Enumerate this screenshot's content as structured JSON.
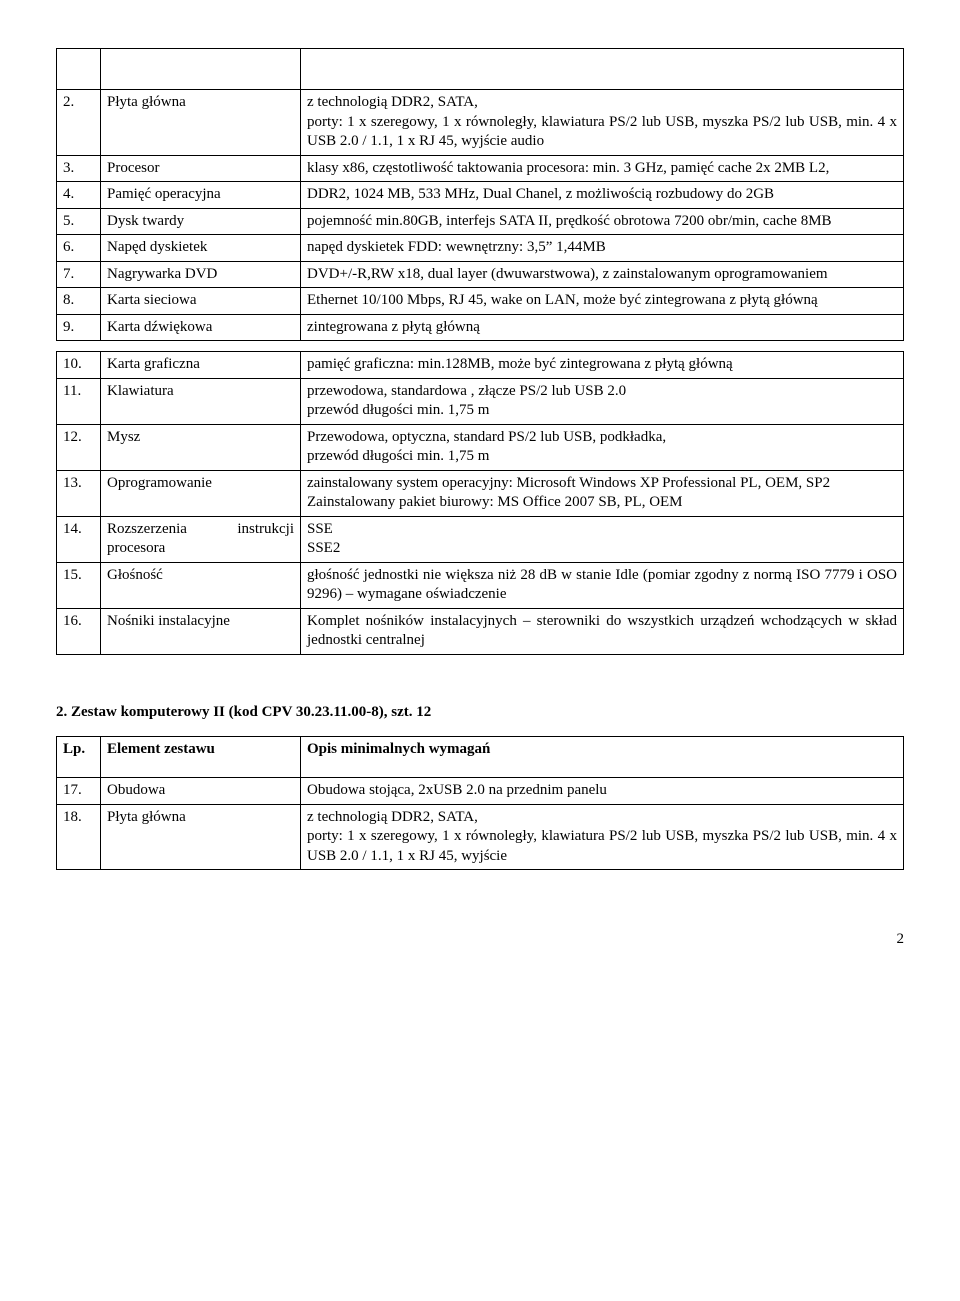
{
  "table1": {
    "rows": [
      {
        "num": "",
        "name": "",
        "desc": ""
      },
      {
        "num": "2.",
        "name": "Płyta główna",
        "desc": "z technologią DDR2, SATA,\nporty: 1 x szeregowy, 1 x równoległy, klawiatura PS/2 lub USB, myszka PS/2 lub USB, min. 4 x USB 2.0 / 1.1, 1 x RJ 45, wyjście audio"
      },
      {
        "num": "3.",
        "name": "Procesor",
        "desc": "klasy x86, częstotliwość taktowania procesora: min. 3 GHz, pamięć cache 2x 2MB L2,"
      },
      {
        "num": "4.",
        "name": "Pamięć operacyjna",
        "desc": "DDR2, 1024 MB, 533 MHz, Dual Chanel, z możliwością rozbudowy do 2GB"
      },
      {
        "num": "5.",
        "name": "Dysk twardy",
        "desc": "pojemność min.80GB, interfejs SATA II, prędkość obrotowa 7200 obr/min, cache 8MB"
      },
      {
        "num": "6.",
        "name": "Napęd dyskietek",
        "desc": "napęd dyskietek FDD: wewnętrzny: 3,5” 1,44MB"
      },
      {
        "num": "7.",
        "name": "Nagrywarka DVD",
        "desc": "DVD+/-R,RW x18, dual layer (dwuwarstwowa), z zainstalowanym oprogramowaniem"
      },
      {
        "num": "8.",
        "name": "Karta sieciowa",
        "desc": "Ethernet 10/100 Mbps, RJ 45, wake on LAN, może być zintegrowana z płytą główną"
      },
      {
        "num": "9.",
        "name": "Karta dźwiękowa",
        "desc": "zintegrowana z płytą główną"
      }
    ]
  },
  "table2": {
    "rows": [
      {
        "num": "10.",
        "name": "Karta graficzna",
        "desc": "pamięć graficzna: min.128MB, może być zintegrowana z płytą główną"
      },
      {
        "num": "11.",
        "name": "Klawiatura",
        "desc": "przewodowa, standardowa , złącze PS/2 lub USB 2.0\nprzewód długości min. 1,75 m"
      },
      {
        "num": "12.",
        "name": "Mysz",
        "desc": "Przewodowa, optyczna, standard PS/2 lub USB, podkładka,\nprzewód długości min. 1,75 m"
      },
      {
        "num": "13.",
        "name": "Oprogramowanie",
        "desc": "zainstalowany system operacyjny: Microsoft Windows XP Professional PL, OEM, SP2\nZainstalowany pakiet biurowy: MS Office 2007 SB, PL, OEM"
      },
      {
        "num": "14.",
        "name": "Rozszerzenia instrukcji procesora",
        "desc": "SSE\nSSE2"
      },
      {
        "num": "15.",
        "name": "Głośność",
        "desc": "głośność jednostki nie większa niż 28 dB w stanie Idle (pomiar zgodny z normą ISO 7779 i OSO 9296) – wymagane oświadczenie"
      },
      {
        "num": "16.",
        "name": "Nośniki instalacyjne",
        "desc": "Komplet nośników instalacyjnych – sterowniki do wszystkich urządzeń wchodzących w skład jednostki centralnej"
      }
    ]
  },
  "section2": {
    "heading": "2. Zestaw komputerowy II (kod CPV 30.23.11.00-8), szt.  12",
    "header": {
      "num": "Lp.",
      "name": "Element zestawu",
      "desc": "Opis minimalnych wymagań"
    },
    "rows": [
      {
        "num": "17.",
        "name": "Obudowa",
        "desc": "Obudowa stojąca,  2xUSB 2.0 na przednim panelu"
      },
      {
        "num": "18.",
        "name": "Płyta główna",
        "desc": "z technologią DDR2, SATA,\nporty: 1 x szeregowy, 1 x równoległy, klawiatura PS/2 lub USB, myszka PS/2 lub USB, min. 4 x USB 2.0 / 1.1, 1 x RJ 45, wyjście"
      }
    ]
  },
  "pageNumber": "2"
}
